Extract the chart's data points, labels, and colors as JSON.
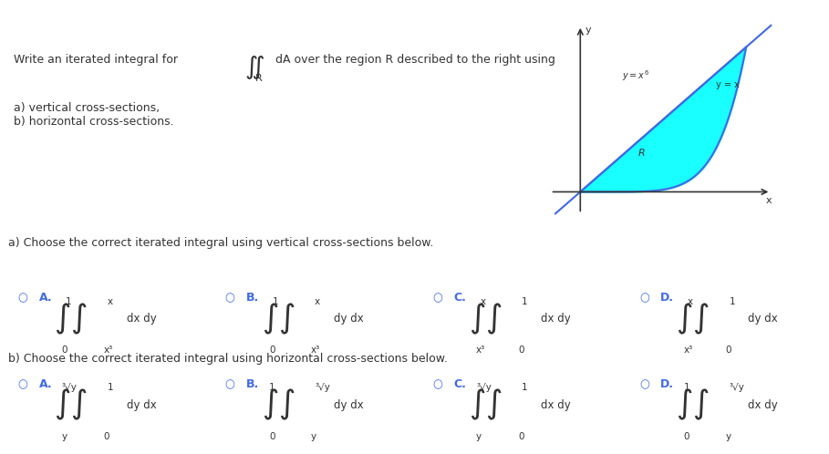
{
  "bg_color": "#ffffff",
  "top_text": "Write an iterated integral for",
  "top_text2": "dA over the region R described to the right using",
  "top_text3": "a) vertical cross-sections,\nb) horizontal cross-sections.",
  "section_a_label": "a) Choose the correct iterated integral using vertical cross-sections below.",
  "section_b_label": "b) Choose the correct iterated integral using horizontal cross-sections below.",
  "options_a": [
    {
      "letter": "A.",
      "upper_outer": "1",
      "upper_inner": "x",
      "lower_outer": "0",
      "lower_inner": "x³",
      "op": "dx dy"
    },
    {
      "letter": "B.",
      "upper_outer": "1",
      "upper_inner": "x",
      "lower_outer": "0",
      "lower_inner": "x³",
      "op": "dy dx"
    },
    {
      "letter": "C.",
      "upper_outer": "x",
      "upper_inner": "1",
      "lower_outer": "x³",
      "lower_inner": "0",
      "op": "dx dy"
    },
    {
      "letter": "D.",
      "upper_outer": "x",
      "upper_inner": "1",
      "lower_outer": "x³",
      "lower_inner": "0",
      "op": "dy dx"
    }
  ],
  "options_b": [
    {
      "letter": "A.",
      "upper_outer": "³√y",
      "upper_inner": "1",
      "lower_outer": "y",
      "lower_inner": "0",
      "op": "dy dx"
    },
    {
      "letter": "B.",
      "upper_outer": "1",
      "upper_inner": "³√y",
      "lower_outer": "0",
      "lower_inner": "y",
      "op": "dy dx"
    },
    {
      "letter": "C.",
      "upper_outer": "³√y",
      "upper_inner": "1",
      "lower_outer": "y",
      "lower_inner": "0",
      "op": "dx dy"
    },
    {
      "letter": "D.",
      "upper_outer": "1",
      "upper_inner": "³√y",
      "lower_outer": "0",
      "lower_inner": "y",
      "op": "dx dy"
    }
  ],
  "accent_color": "#4169e1",
  "fill_color": "#00ffff",
  "divider_color": "#cccccc",
  "label_color": "#333333",
  "option_letter_color": "#4169e1"
}
